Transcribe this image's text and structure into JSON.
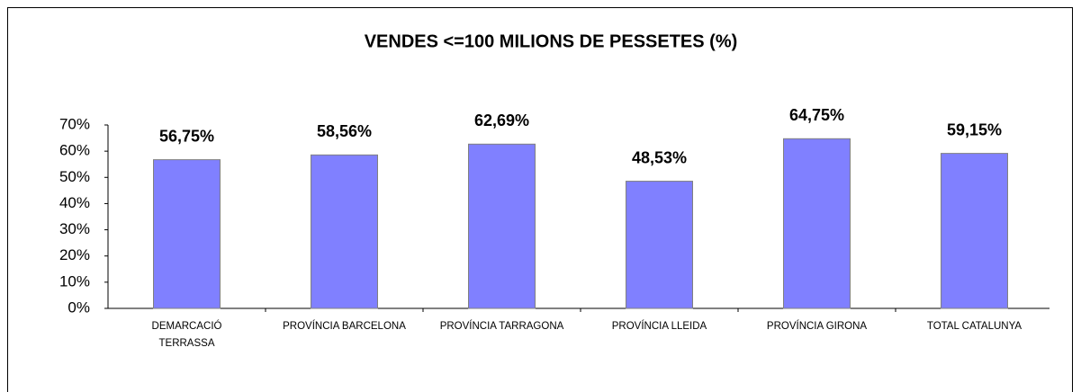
{
  "chart_data": {
    "type": "bar",
    "title": "VENDES <=100 MILIONS DE PESSETES (%)",
    "categories": [
      "DEMARCACIÓ TERRASSA",
      "PROVÍNCIA BARCELONA",
      "PROVÍNCIA TARRAGONA",
      "PROVÍNCIA LLEIDA",
      "PROVÍNCIA GIRONA",
      "TOTAL CATALUNYA"
    ],
    "values": [
      56.75,
      58.56,
      62.69,
      48.53,
      64.75,
      59.15
    ],
    "value_labels": [
      "56,75%",
      "58,56%",
      "62,69%",
      "48,53%",
      "64,75%",
      "59,15%"
    ],
    "color": "#8080ff",
    "ylim": [
      0,
      70
    ],
    "yticks": [
      {
        "value": 0,
        "label": "0%"
      },
      {
        "value": 10,
        "label": "10%"
      },
      {
        "value": 20,
        "label": "20%"
      },
      {
        "value": 30,
        "label": "30%"
      },
      {
        "value": 40,
        "label": "40%"
      },
      {
        "value": 50,
        "label": "50%"
      },
      {
        "value": 60,
        "label": "60%"
      },
      {
        "value": 70,
        "label": "70%"
      }
    ],
    "grid": false
  }
}
